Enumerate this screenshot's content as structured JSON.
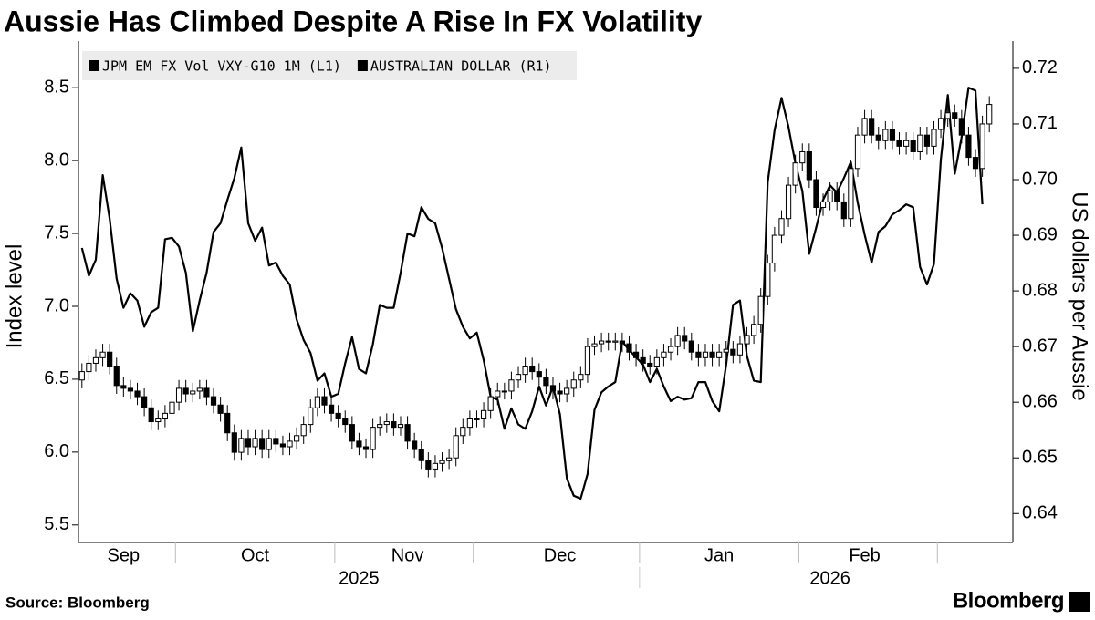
{
  "chart_data": {
    "type": "line-candlestick",
    "title": "Aussie Has Climbed Despite A Rise In FX Volatility",
    "ylabel": "Index level",
    "y2label": "US dollars per Aussie",
    "source": "Source: Bloomberg",
    "brand": "Bloomberg",
    "categories": [
      null,
      null,
      null,
      null,
      null,
      null,
      "Sep",
      null,
      null,
      null,
      null,
      null,
      null,
      null,
      null,
      null,
      null,
      null,
      null,
      null,
      null,
      null,
      null,
      null,
      null,
      "Oct",
      null,
      null,
      null,
      null,
      null,
      null,
      null,
      null,
      null,
      null,
      null,
      null,
      null,
      null,
      null,
      null,
      null,
      null,
      null,
      null,
      null,
      "Nov",
      null,
      null,
      null,
      null,
      null,
      null,
      null,
      null,
      null,
      null,
      null,
      null,
      null,
      null,
      null,
      null,
      null,
      null,
      null,
      null,
      null,
      "Dec",
      null,
      null,
      null,
      null,
      null,
      null,
      null,
      null,
      null,
      null,
      null,
      null,
      null,
      null,
      null,
      null,
      null,
      null,
      null,
      null,
      null,
      null,
      "Jan",
      null,
      null,
      null,
      null,
      null,
      null,
      null,
      null,
      null,
      null,
      null,
      null,
      null,
      null,
      null,
      null,
      null,
      null,
      null,
      null,
      "Feb",
      null,
      null,
      null,
      null,
      null,
      null,
      null,
      null,
      null,
      null,
      null,
      null,
      null,
      null,
      null,
      null,
      null,
      null
    ],
    "categories2": [
      null,
      null,
      null,
      null,
      null,
      null,
      null,
      null,
      null,
      null,
      null,
      null,
      null,
      null,
      null,
      null,
      null,
      null,
      null,
      null,
      null,
      null,
      null,
      null,
      null,
      null,
      null,
      null,
      null,
      null,
      null,
      null,
      null,
      null,
      null,
      null,
      null,
      null,
      null,
      null,
      "2025",
      null,
      null,
      null,
      null,
      null,
      null,
      null,
      null,
      null,
      null,
      null,
      null,
      null,
      null,
      null,
      null,
      null,
      null,
      null,
      null,
      null,
      null,
      null,
      null,
      null,
      null,
      null,
      null,
      null,
      null,
      null,
      null,
      null,
      null,
      null,
      null,
      null,
      null,
      null,
      null,
      null,
      null,
      null,
      null,
      null,
      null,
      null,
      null,
      null,
      null,
      null,
      null,
      null,
      null,
      null,
      null,
      null,
      null,
      null,
      null,
      null,
      null,
      null,
      null,
      null,
      null,
      null,
      "2026",
      null,
      null,
      null,
      null,
      null,
      null,
      null,
      null,
      null,
      null,
      null,
      null,
      null,
      null,
      null,
      null,
      null,
      null,
      null,
      null,
      null,
      null,
      null
    ],
    "xticks": [
      14,
      37,
      57,
      81,
      104,
      124
    ],
    "x2ticks": [
      81
    ],
    "ylim": [
      5.38,
      8.82
    ],
    "yticks": [
      5.5,
      {
        "value": 6,
        "label": "6.0"
      },
      6.5,
      {
        "value": 7,
        "label": "7.0"
      },
      7.5,
      {
        "value": 8,
        "label": "8.0"
      },
      8.5
    ],
    "y2lim": [
      0.6348,
      0.7249
    ],
    "y2ticks": [
      0.64,
      0.65,
      0.66,
      0.67,
      0.68,
      0.69,
      {
        "value": 0.7,
        "label": "0.70"
      },
      0.71,
      0.72
    ],
    "grid": false,
    "legend": "top-left",
    "series": [
      {
        "name": "JPM EM FX Vol VXY-G10 1M (L1)",
        "type": "line",
        "axis": "y",
        "color": "#000000",
        "values": [
          7.4,
          7.21,
          7.32,
          7.9,
          7.6,
          7.19,
          6.99,
          7.09,
          7.04,
          6.86,
          6.96,
          6.99,
          7.46,
          7.47,
          7.41,
          7.23,
          6.83,
          7.04,
          7.23,
          7.51,
          7.57,
          7.73,
          7.88,
          8.09,
          7.57,
          7.45,
          7.54,
          7.28,
          7.3,
          7.21,
          7.15,
          6.91,
          6.77,
          6.68,
          6.49,
          6.54,
          6.38,
          6.4,
          6.61,
          6.79,
          6.57,
          6.54,
          6.74,
          7.01,
          6.99,
          6.99,
          7.23,
          7.5,
          7.48,
          7.68,
          7.6,
          7.57,
          7.4,
          7.19,
          6.98,
          6.86,
          6.78,
          6.82,
          6.63,
          6.38,
          6.36,
          6.16,
          6.3,
          6.19,
          6.16,
          6.28,
          6.45,
          6.32,
          6.45,
          6.26,
          5.82,
          5.7,
          5.68,
          5.85,
          6.29,
          6.41,
          6.45,
          6.48,
          6.76,
          6.7,
          6.65,
          6.6,
          6.48,
          6.57,
          6.45,
          6.35,
          6.38,
          6.36,
          6.37,
          6.48,
          6.48,
          6.35,
          6.28,
          6.6,
          7.01,
          7.04,
          6.66,
          6.49,
          6.48,
          7.85,
          8.21,
          8.43,
          8.23,
          7.98,
          7.79,
          7.36,
          7.54,
          7.73,
          7.83,
          7.78,
          7.88,
          7.99,
          7.71,
          7.49,
          7.3,
          7.51,
          7.55,
          7.63,
          7.66,
          7.7,
          7.68,
          7.27,
          7.15,
          7.29,
          8.01,
          8.45,
          7.91,
          8.16,
          8.5,
          8.48,
          7.7,
          null
        ]
      },
      {
        "name": "AUSTRALIAN DOLLAR (R1)",
        "type": "candlestick",
        "axis": "y2",
        "color": "#000000",
        "open": [
          0.664,
          0.6655,
          0.667,
          0.668,
          0.669,
          0.6665,
          0.663,
          0.6625,
          0.662,
          0.661,
          0.659,
          0.6565,
          0.657,
          0.658,
          0.66,
          0.6625,
          0.6615,
          0.662,
          0.6625,
          0.661,
          0.6595,
          0.658,
          0.6545,
          0.651,
          0.6535,
          0.652,
          0.6535,
          0.6515,
          0.6535,
          0.6525,
          0.652,
          0.653,
          0.654,
          0.656,
          0.659,
          0.661,
          0.6595,
          0.658,
          0.657,
          0.656,
          0.653,
          0.652,
          0.6515,
          0.6555,
          0.656,
          0.6565,
          0.6555,
          0.656,
          0.653,
          0.6515,
          0.6495,
          0.648,
          0.649,
          0.6495,
          0.65,
          0.654,
          0.6555,
          0.657,
          0.657,
          0.6585,
          0.661,
          0.662,
          0.662,
          0.664,
          0.665,
          0.6665,
          0.6655,
          0.6645,
          0.663,
          0.662,
          0.6615,
          0.6625,
          0.664,
          0.665,
          0.67,
          0.6705,
          0.671,
          0.6708,
          0.671,
          0.6705,
          0.669,
          0.668,
          0.667,
          0.6665,
          0.668,
          0.669,
          0.67,
          0.672,
          0.671,
          0.669,
          0.668,
          0.669,
          0.668,
          0.669,
          0.6695,
          0.6685,
          0.6705,
          0.672,
          0.674,
          0.679,
          0.685,
          0.69,
          0.693,
          0.699,
          0.703,
          0.705,
          0.7,
          0.695,
          0.696,
          0.698,
          0.696,
          0.693,
          0.702,
          0.708,
          0.711,
          0.708,
          0.707,
          0.709,
          0.707,
          0.706,
          0.707,
          0.705,
          0.708,
          0.706,
          0.709,
          0.711,
          0.712,
          0.711,
          0.708,
          0.704,
          0.702,
          0.71
        ],
        "high": [
          0.667,
          0.6685,
          0.6695,
          0.6705,
          0.6705,
          0.668,
          0.6645,
          0.664,
          0.6635,
          0.6625,
          0.6605,
          0.6585,
          0.6595,
          0.6615,
          0.664,
          0.664,
          0.6635,
          0.664,
          0.664,
          0.6625,
          0.661,
          0.6595,
          0.656,
          0.655,
          0.655,
          0.655,
          0.655,
          0.655,
          0.655,
          0.654,
          0.6545,
          0.6555,
          0.6575,
          0.6605,
          0.6625,
          0.6625,
          0.661,
          0.6595,
          0.6585,
          0.6575,
          0.6545,
          0.6535,
          0.657,
          0.6575,
          0.658,
          0.658,
          0.6575,
          0.6575,
          0.6545,
          0.653,
          0.651,
          0.6505,
          0.651,
          0.6515,
          0.6555,
          0.657,
          0.6585,
          0.6585,
          0.66,
          0.6625,
          0.6635,
          0.6635,
          0.6655,
          0.6665,
          0.668,
          0.668,
          0.667,
          0.666,
          0.6645,
          0.6635,
          0.664,
          0.6655,
          0.6665,
          0.6715,
          0.672,
          0.6725,
          0.6725,
          0.6725,
          0.6725,
          0.672,
          0.6705,
          0.6695,
          0.6685,
          0.6695,
          0.6705,
          0.6715,
          0.6735,
          0.6735,
          0.6725,
          0.6705,
          0.6705,
          0.6705,
          0.6705,
          0.671,
          0.671,
          0.672,
          0.6735,
          0.6755,
          0.6805,
          0.6865,
          0.6915,
          0.6945,
          0.7005,
          0.7045,
          0.7065,
          0.7065,
          0.7015,
          0.6975,
          0.6995,
          0.6995,
          0.6975,
          0.7035,
          0.7095,
          0.7125,
          0.7125,
          0.7095,
          0.7105,
          0.7105,
          0.7085,
          0.7085,
          0.7085,
          0.7095,
          0.7095,
          0.7105,
          0.7125,
          0.7135,
          0.7135,
          0.7125,
          0.7095,
          0.7055,
          0.7115,
          0.715
        ],
        "low": [
          0.6625,
          0.664,
          0.6655,
          0.6665,
          0.665,
          0.6615,
          0.661,
          0.6605,
          0.6595,
          0.6575,
          0.655,
          0.655,
          0.6555,
          0.6565,
          0.6585,
          0.66,
          0.66,
          0.6605,
          0.6595,
          0.658,
          0.6565,
          0.653,
          0.6495,
          0.6495,
          0.6505,
          0.6505,
          0.65,
          0.65,
          0.651,
          0.6505,
          0.6505,
          0.6515,
          0.6525,
          0.6545,
          0.6575,
          0.658,
          0.6565,
          0.6555,
          0.6545,
          0.6515,
          0.6505,
          0.65,
          0.65,
          0.654,
          0.6545,
          0.654,
          0.654,
          0.6515,
          0.65,
          0.648,
          0.6465,
          0.6465,
          0.6475,
          0.648,
          0.6485,
          0.6525,
          0.654,
          0.6555,
          0.6555,
          0.657,
          0.6595,
          0.6605,
          0.6605,
          0.6625,
          0.6635,
          0.664,
          0.663,
          0.6615,
          0.6605,
          0.66,
          0.66,
          0.661,
          0.6625,
          0.6635,
          0.6685,
          0.669,
          0.6693,
          0.6693,
          0.669,
          0.6675,
          0.6665,
          0.6655,
          0.665,
          0.665,
          0.6665,
          0.6675,
          0.6685,
          0.6695,
          0.6675,
          0.6665,
          0.6665,
          0.6665,
          0.6665,
          0.6675,
          0.667,
          0.667,
          0.669,
          0.6705,
          0.6725,
          0.6775,
          0.6835,
          0.6885,
          0.6915,
          0.6975,
          0.7015,
          0.6985,
          0.6935,
          0.6935,
          0.6945,
          0.6945,
          0.6915,
          0.6915,
          0.7005,
          0.7065,
          0.7065,
          0.7055,
          0.7055,
          0.7055,
          0.7045,
          0.7045,
          0.7035,
          0.7035,
          0.7045,
          0.7045,
          0.7075,
          0.7095,
          0.7095,
          0.7065,
          0.7025,
          0.7005,
          0.7005,
          0.7085
        ],
        "close": [
          0.6655,
          0.667,
          0.668,
          0.669,
          0.6665,
          0.663,
          0.6625,
          0.662,
          0.661,
          0.659,
          0.6565,
          0.657,
          0.658,
          0.66,
          0.6625,
          0.6615,
          0.662,
          0.6625,
          0.661,
          0.6595,
          0.658,
          0.6545,
          0.651,
          0.6535,
          0.652,
          0.6535,
          0.6515,
          0.6535,
          0.6525,
          0.652,
          0.653,
          0.654,
          0.656,
          0.659,
          0.661,
          0.6595,
          0.658,
          0.657,
          0.656,
          0.653,
          0.652,
          0.6515,
          0.6555,
          0.656,
          0.6565,
          0.6555,
          0.656,
          0.653,
          0.6515,
          0.6495,
          0.648,
          0.649,
          0.6495,
          0.65,
          0.654,
          0.6555,
          0.657,
          0.657,
          0.6585,
          0.661,
          0.662,
          0.662,
          0.664,
          0.665,
          0.6665,
          0.6655,
          0.6645,
          0.663,
          0.662,
          0.6615,
          0.6625,
          0.664,
          0.665,
          0.67,
          0.6705,
          0.671,
          0.6708,
          0.671,
          0.6705,
          0.669,
          0.668,
          0.667,
          0.6665,
          0.668,
          0.669,
          0.67,
          0.672,
          0.671,
          0.669,
          0.668,
          0.669,
          0.668,
          0.669,
          0.6695,
          0.6685,
          0.6705,
          0.672,
          0.674,
          0.679,
          0.685,
          0.69,
          0.693,
          0.699,
          0.703,
          0.705,
          0.7,
          0.695,
          0.696,
          0.698,
          0.696,
          0.693,
          0.702,
          0.708,
          0.711,
          0.708,
          0.707,
          0.709,
          0.707,
          0.706,
          0.707,
          0.705,
          0.708,
          0.706,
          0.709,
          0.711,
          0.712,
          0.711,
          0.708,
          0.704,
          0.702,
          0.71,
          0.7135
        ]
      }
    ]
  }
}
